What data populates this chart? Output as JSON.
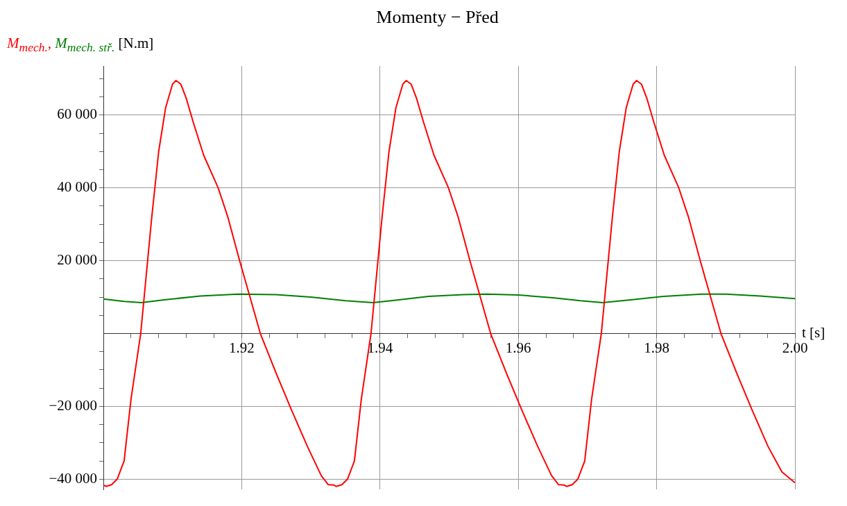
{
  "chart_data": {
    "type": "line",
    "title": "Momenty − Před",
    "xlabel": "t [s]",
    "ylabel": "[N.m]",
    "xlim": [
      1.9,
      2.0
    ],
    "ylim": [
      -42800,
      73500
    ],
    "xticks": [
      {
        "value": 1.904,
        "label": null
      },
      {
        "value": 1.908,
        "label": null
      },
      {
        "value": 1.912,
        "label": null
      },
      {
        "value": 1.916,
        "label": null
      },
      1.92,
      {
        "value": 1.924,
        "label": null
      },
      {
        "value": 1.928,
        "label": null
      },
      {
        "value": 1.932,
        "label": null
      },
      {
        "value": 1.936,
        "label": null
      },
      1.94,
      {
        "value": 1.944,
        "label": null
      },
      {
        "value": 1.948,
        "label": null
      },
      {
        "value": 1.952,
        "label": null
      },
      {
        "value": 1.956,
        "label": null
      },
      1.96,
      {
        "value": 1.964,
        "label": null
      },
      {
        "value": 1.968,
        "label": null
      },
      {
        "value": 1.972,
        "label": null
      },
      {
        "value": 1.976,
        "label": null
      },
      1.98,
      {
        "value": 1.984,
        "label": null
      },
      {
        "value": 1.988,
        "label": null
      },
      {
        "value": 1.992,
        "label": null
      },
      {
        "value": 1.996,
        "label": null
      },
      {
        "value": 2.0,
        "label": "2.00"
      }
    ],
    "yticks": [
      {
        "value": -40000,
        "label": "−40 000"
      },
      {
        "value": -35000,
        "label": null
      },
      {
        "value": -30000,
        "label": null
      },
      {
        "value": -25000,
        "label": null
      },
      {
        "value": -20000,
        "label": "−20 000"
      },
      {
        "value": -15000,
        "label": null
      },
      {
        "value": -10000,
        "label": null
      },
      {
        "value": -5000,
        "label": null
      },
      {
        "value": 5000,
        "label": null
      },
      {
        "value": 10000,
        "label": null
      },
      {
        "value": 15000,
        "label": null
      },
      {
        "value": 20000,
        "label": "20 000"
      },
      {
        "value": 25000,
        "label": null
      },
      {
        "value": 30000,
        "label": null
      },
      {
        "value": 35000,
        "label": null
      },
      {
        "value": 40000,
        "label": "40 000"
      },
      {
        "value": 45000,
        "label": null
      },
      {
        "value": 50000,
        "label": null
      },
      {
        "value": 55000,
        "label": null
      },
      {
        "value": 60000,
        "label": "60 000"
      },
      {
        "value": 65000,
        "label": null
      },
      {
        "value": 70000,
        "label": null
      }
    ],
    "grid": true,
    "marker": "none",
    "line_style": "solid",
    "series": [
      {
        "name": "M$_{mech.}$,",
        "color": "#ff0000",
        "x": [
          1.9,
          1.9004,
          1.9012,
          1.902,
          1.9026,
          1.903,
          1.904,
          1.9054,
          1.906,
          1.907,
          1.908,
          1.909,
          1.91,
          1.9105,
          1.9112,
          1.912,
          1.913,
          1.9145,
          1.9166,
          1.918,
          1.9197,
          1.9212,
          1.9227,
          1.925,
          1.9272,
          1.9295,
          1.9315,
          1.9325,
          1.9333,
          1.9337,
          1.9345,
          1.9353,
          1.9359,
          1.9363,
          1.9373,
          1.9387,
          1.9393,
          1.9403,
          1.9413,
          1.9423,
          1.9433,
          1.9438,
          1.9445,
          1.9453,
          1.9463,
          1.9478,
          1.9499,
          1.9513,
          1.953,
          1.9545,
          1.956,
          1.9583,
          1.9605,
          1.9628,
          1.9648,
          1.9658,
          1.9666,
          1.967,
          1.9678,
          1.9686,
          1.9692,
          1.9696,
          1.9706,
          1.972,
          1.9726,
          1.9736,
          1.9746,
          1.9756,
          1.9766,
          1.9771,
          1.9778,
          1.9786,
          1.9796,
          1.9811,
          1.9832,
          1.9846,
          1.9863,
          1.9878,
          1.9893,
          1.9916,
          1.9938,
          1.9961,
          1.9981,
          2.0
        ],
        "values": [
          -41600,
          -42000,
          -41500,
          -40000,
          -37000,
          -35000,
          -18000,
          0,
          12000,
          32000,
          50000,
          62000,
          68500,
          69500,
          68500,
          64500,
          58000,
          49000,
          40000,
          32000,
          20000,
          10000,
          0,
          -11000,
          -21000,
          -31000,
          -39000,
          -41500,
          -41600,
          -42000,
          -41500,
          -40000,
          -37000,
          -35000,
          -18000,
          0,
          12000,
          32000,
          50000,
          62000,
          68500,
          69500,
          68500,
          64500,
          58000,
          49000,
          40000,
          32000,
          20000,
          10000,
          0,
          -11000,
          -21000,
          -31000,
          -39000,
          -41500,
          -41600,
          -42000,
          -41500,
          -40000,
          -37000,
          -35000,
          -18000,
          0,
          12000,
          32000,
          50000,
          62000,
          68500,
          69500,
          68500,
          64500,
          58000,
          49000,
          40000,
          32000,
          20000,
          10000,
          0,
          -11000,
          -21000,
          -31000,
          -38000,
          -41000
        ]
      },
      {
        "name": "M$_{mech. stř.}$",
        "color": "#008000",
        "x": [
          1.9,
          1.903,
          1.9055,
          1.909,
          1.914,
          1.9195,
          1.925,
          1.93,
          1.935,
          1.939,
          1.9425,
          1.947,
          1.952,
          1.9555,
          1.96,
          1.965,
          1.969,
          1.9722,
          1.976,
          1.981,
          1.9865,
          1.99,
          1.995,
          2.0
        ],
        "values": [
          9500,
          8800,
          8500,
          9300,
          10300,
          10800,
          10700,
          10000,
          9000,
          8500,
          9200,
          10200,
          10700,
          10800,
          10600,
          9800,
          9000,
          8500,
          9200,
          10200,
          10800,
          10800,
          10300,
          9600
        ]
      }
    ]
  }
}
